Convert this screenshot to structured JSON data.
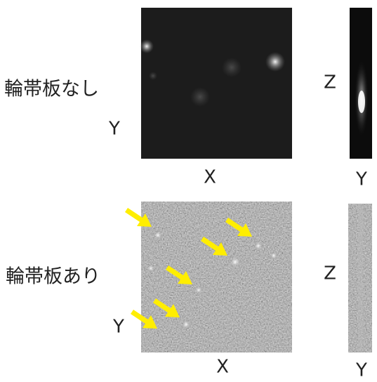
{
  "rows": [
    {
      "label": "輪帯板なし",
      "xy_image": {
        "y_axis": "Y",
        "x_axis": "X"
      },
      "yz_image": {
        "z_axis": "Z",
        "y_axis": "Y"
      }
    },
    {
      "label": "輪帯板あり",
      "xy_image": {
        "y_axis": "Y",
        "x_axis": "X"
      },
      "yz_image": {
        "z_axis": "Z",
        "y_axis": "Y"
      }
    }
  ]
}
